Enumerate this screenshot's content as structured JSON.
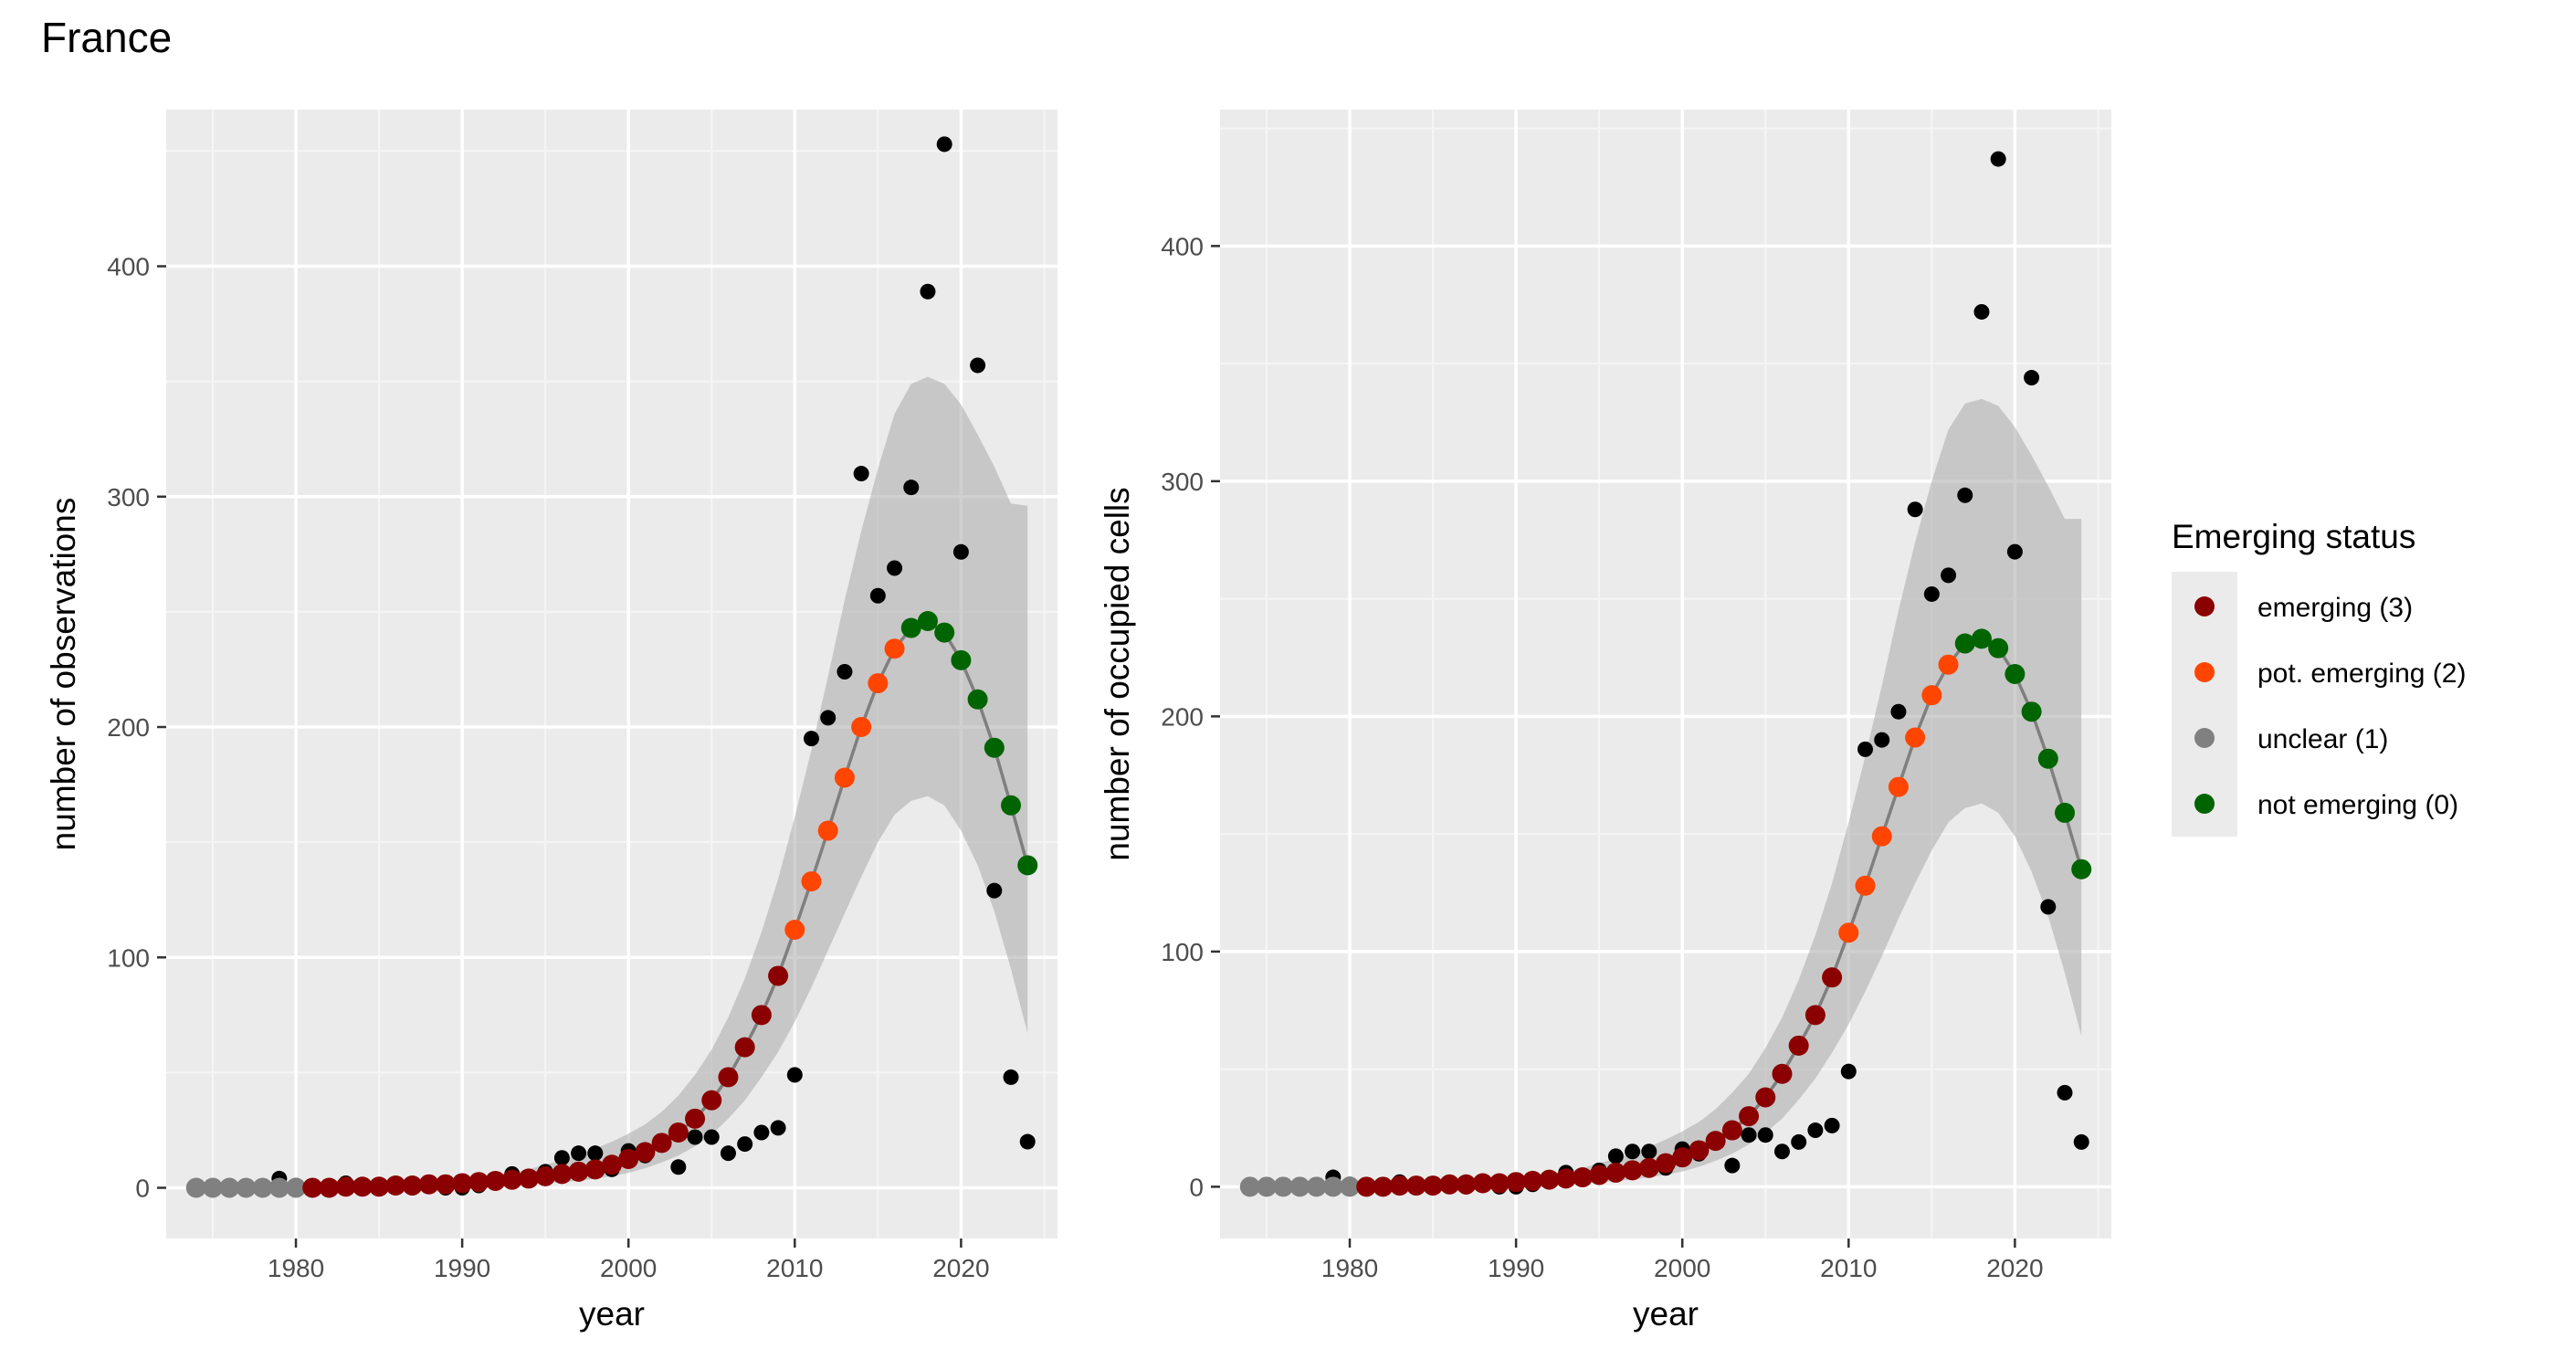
{
  "title": "France",
  "legend": {
    "title": "Emerging status",
    "items": [
      {
        "label": "emerging (3)",
        "color": "#8B0000"
      },
      {
        "label": "pot. emerging (2)",
        "color": "#FF4500"
      },
      {
        "label": "unclear (1)",
        "color": "#808080"
      },
      {
        "label": "not emerging (0)",
        "color": "#006400"
      }
    ]
  },
  "chart_data": [
    {
      "type": "scatter",
      "title": "",
      "xlabel": "year",
      "ylabel": "number of observations",
      "xlim": [
        1972.2,
        2025.8
      ],
      "ylim": [
        -22,
        468
      ],
      "xticks": [
        1980,
        1990,
        2000,
        2010,
        2020
      ],
      "yticks": [
        0,
        100,
        200,
        300,
        400
      ],
      "grid": true,
      "observed": {
        "x": [
          1974,
          1975,
          1976,
          1977,
          1978,
          1979,
          1980,
          1981,
          1982,
          1983,
          1984,
          1985,
          1986,
          1987,
          1988,
          1989,
          1990,
          1991,
          1992,
          1993,
          1994,
          1995,
          1996,
          1997,
          1998,
          1999,
          2000,
          2001,
          2002,
          2003,
          2004,
          2005,
          2006,
          2007,
          2008,
          2009,
          2010,
          2011,
          2012,
          2013,
          2014,
          2015,
          2016,
          2017,
          2018,
          2019,
          2020,
          2021,
          2022,
          2023,
          2024
        ],
        "y": [
          0,
          0,
          0,
          0,
          0,
          4,
          1,
          0,
          0,
          2,
          1,
          1,
          1,
          0,
          1,
          0,
          0,
          1,
          3,
          6,
          4,
          7,
          13,
          15,
          15,
          8,
          16,
          14,
          20,
          9,
          22,
          22,
          15,
          19,
          24,
          26,
          49,
          195,
          204,
          224,
          310,
          257,
          269,
          304,
          389,
          453,
          276,
          357,
          129,
          48,
          20
        ]
      },
      "fitted": {
        "x": [
          1974,
          1975,
          1976,
          1977,
          1978,
          1979,
          1980,
          1981,
          1982,
          1983,
          1984,
          1985,
          1986,
          1987,
          1988,
          1989,
          1990,
          1991,
          1992,
          1993,
          1994,
          1995,
          1996,
          1997,
          1998,
          1999,
          2000,
          2001,
          2002,
          2003,
          2004,
          2005,
          2006,
          2007,
          2008,
          2009,
          2010,
          2011,
          2012,
          2013,
          2014,
          2015,
          2016,
          2017,
          2018,
          2019,
          2020,
          2021,
          2022,
          2023,
          2024
        ],
        "y": [
          0,
          0,
          0,
          0,
          0,
          0,
          0,
          0,
          0,
          0.5,
          0.5,
          0.5,
          1,
          1,
          1.5,
          1.5,
          2,
          2.5,
          3,
          3.5,
          4,
          5,
          6,
          7,
          8,
          10,
          12.5,
          15.5,
          19.5,
          24,
          30,
          38,
          48,
          61,
          75,
          92,
          112,
          133,
          155,
          178,
          200,
          219,
          234,
          243,
          246,
          241,
          229,
          212,
          191,
          166,
          140
        ],
        "status": [
          1,
          1,
          1,
          1,
          1,
          1,
          1,
          3,
          3,
          3,
          3,
          3,
          3,
          3,
          3,
          3,
          3,
          3,
          3,
          3,
          3,
          3,
          3,
          3,
          3,
          3,
          3,
          3,
          3,
          3,
          3,
          3,
          3,
          3,
          3,
          3,
          2,
          2,
          2,
          2,
          2,
          2,
          2,
          0,
          0,
          0,
          0,
          0,
          0,
          0,
          0
        ],
        "ci_lower": [
          0,
          0,
          0,
          0,
          0,
          0,
          0,
          0,
          0,
          0,
          0,
          0,
          0,
          0,
          0,
          0,
          0,
          0,
          0.5,
          1,
          1.5,
          2,
          2.5,
          3,
          4,
          5,
          6.5,
          8.5,
          11,
          14,
          18,
          23,
          30,
          38,
          48,
          59,
          72,
          87,
          103,
          119,
          135,
          150,
          162,
          168,
          170,
          166,
          155,
          140,
          120,
          95,
          67
        ],
        "ci_upper": [
          0,
          0,
          0,
          0,
          0,
          0,
          0,
          0,
          0,
          1,
          1,
          1,
          2,
          2,
          3,
          3,
          4,
          4.5,
          5.5,
          6.5,
          8,
          10,
          12,
          14.5,
          17,
          20,
          23.5,
          27.5,
          33,
          40,
          49,
          60,
          74,
          91,
          111,
          134,
          161,
          190,
          222,
          255,
          285,
          312,
          336,
          349,
          352,
          349,
          340,
          327,
          313,
          297,
          296
        ]
      }
    },
    {
      "type": "scatter",
      "title": "",
      "xlabel": "year",
      "ylabel": "number of occupied cells",
      "xlim": [
        1972.2,
        2025.8
      ],
      "ylim": [
        -22,
        458
      ],
      "xticks": [
        1980,
        1990,
        2000,
        2010,
        2020
      ],
      "yticks": [
        0,
        100,
        200,
        300,
        400
      ],
      "grid": true,
      "observed": {
        "x": [
          1974,
          1975,
          1976,
          1977,
          1978,
          1979,
          1980,
          1981,
          1982,
          1983,
          1984,
          1985,
          1986,
          1987,
          1988,
          1989,
          1990,
          1991,
          1992,
          1993,
          1994,
          1995,
          1996,
          1997,
          1998,
          1999,
          2000,
          2001,
          2002,
          2003,
          2004,
          2005,
          2006,
          2007,
          2008,
          2009,
          2010,
          2011,
          2012,
          2013,
          2014,
          2015,
          2016,
          2017,
          2018,
          2019,
          2020,
          2021,
          2022,
          2023,
          2024
        ],
        "y": [
          0,
          0,
          0,
          0,
          0,
          4,
          1,
          0,
          0,
          2,
          1,
          1,
          1,
          0,
          1,
          0,
          0,
          1,
          3,
          6,
          4,
          7,
          13,
          15,
          15,
          8,
          16,
          14,
          20,
          9,
          22,
          22,
          15,
          19,
          24,
          26,
          49,
          186,
          190,
          202,
          288,
          252,
          260,
          294,
          372,
          437,
          270,
          344,
          119,
          40,
          19
        ]
      },
      "fitted": {
        "x": [
          1974,
          1975,
          1976,
          1977,
          1978,
          1979,
          1980,
          1981,
          1982,
          1983,
          1984,
          1985,
          1986,
          1987,
          1988,
          1989,
          1990,
          1991,
          1992,
          1993,
          1994,
          1995,
          1996,
          1997,
          1998,
          1999,
          2000,
          2001,
          2002,
          2003,
          2004,
          2005,
          2006,
          2007,
          2008,
          2009,
          2010,
          2011,
          2012,
          2013,
          2014,
          2015,
          2016,
          2017,
          2018,
          2019,
          2020,
          2021,
          2022,
          2023,
          2024
        ],
        "y": [
          0,
          0,
          0,
          0,
          0,
          0,
          0,
          0,
          0,
          0.5,
          0.5,
          0.5,
          1,
          1,
          1.5,
          1.5,
          2,
          2.5,
          3,
          3.5,
          4,
          5,
          6,
          7,
          8,
          10,
          12.5,
          15.5,
          19.5,
          24,
          30,
          38,
          48,
          60,
          73,
          89,
          108,
          128,
          149,
          170,
          191,
          209,
          222,
          231,
          233,
          229,
          218,
          202,
          182,
          159,
          135
        ],
        "status": [
          1,
          1,
          1,
          1,
          1,
          1,
          1,
          3,
          3,
          3,
          3,
          3,
          3,
          3,
          3,
          3,
          3,
          3,
          3,
          3,
          3,
          3,
          3,
          3,
          3,
          3,
          3,
          3,
          3,
          3,
          3,
          3,
          3,
          3,
          3,
          3,
          2,
          2,
          2,
          2,
          2,
          2,
          2,
          0,
          0,
          0,
          0,
          0,
          0,
          0,
          0
        ],
        "ci_lower": [
          0,
          0,
          0,
          0,
          0,
          0,
          0,
          0,
          0,
          0,
          0,
          0,
          0,
          0,
          0,
          0,
          0,
          0,
          0.5,
          1,
          1.5,
          2,
          2.5,
          3,
          4,
          5,
          6.5,
          8.5,
          11,
          14,
          18,
          23,
          29,
          37,
          46,
          57,
          69,
          83,
          98,
          114,
          129,
          143,
          155,
          161,
          163,
          159,
          149,
          134,
          115,
          91,
          64
        ],
        "ci_upper": [
          0,
          0,
          0,
          0,
          0,
          0,
          0,
          0,
          0,
          1,
          1,
          1,
          2,
          2,
          3,
          3,
          4,
          4.5,
          5.5,
          6.5,
          8,
          10,
          12,
          14.5,
          17,
          20,
          23.5,
          27.5,
          33,
          40,
          48,
          59,
          72,
          88,
          107,
          129,
          155,
          183,
          213,
          245,
          274,
          300,
          322,
          333,
          335,
          332,
          323,
          311,
          298,
          284,
          284
        ]
      }
    }
  ]
}
